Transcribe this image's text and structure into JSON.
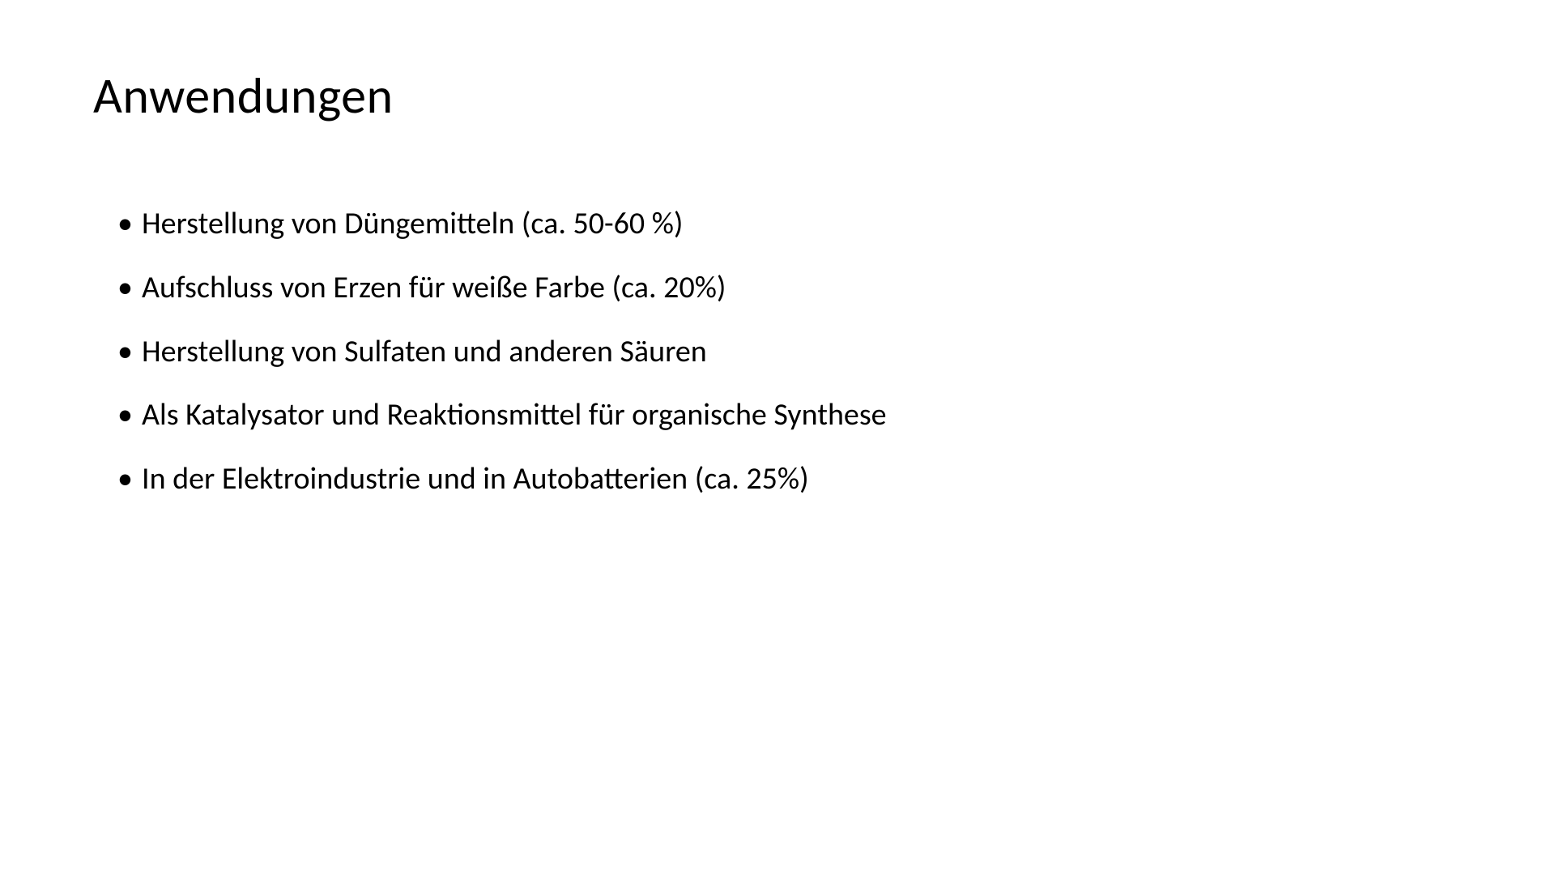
{
  "slide": {
    "title": "Anwendungen",
    "bullets": [
      "Herstellung von Düngemitteln (ca. 50-60 %)",
      "Aufschluss von Erzen für weiße Farbe (ca. 20%)",
      "Herstellung von Sulfaten und anderen Säuren",
      "Als Katalysator und Reaktionsmittel für organische Synthese",
      "In der Elektroindustrie und in Autobatterien (ca. 25%)"
    ],
    "styling": {
      "background_color": "#ffffff",
      "text_color": "#000000",
      "title_fontsize": 62,
      "title_fontweight": 300,
      "bullet_fontsize": 38,
      "font_family": "Calibri"
    }
  }
}
